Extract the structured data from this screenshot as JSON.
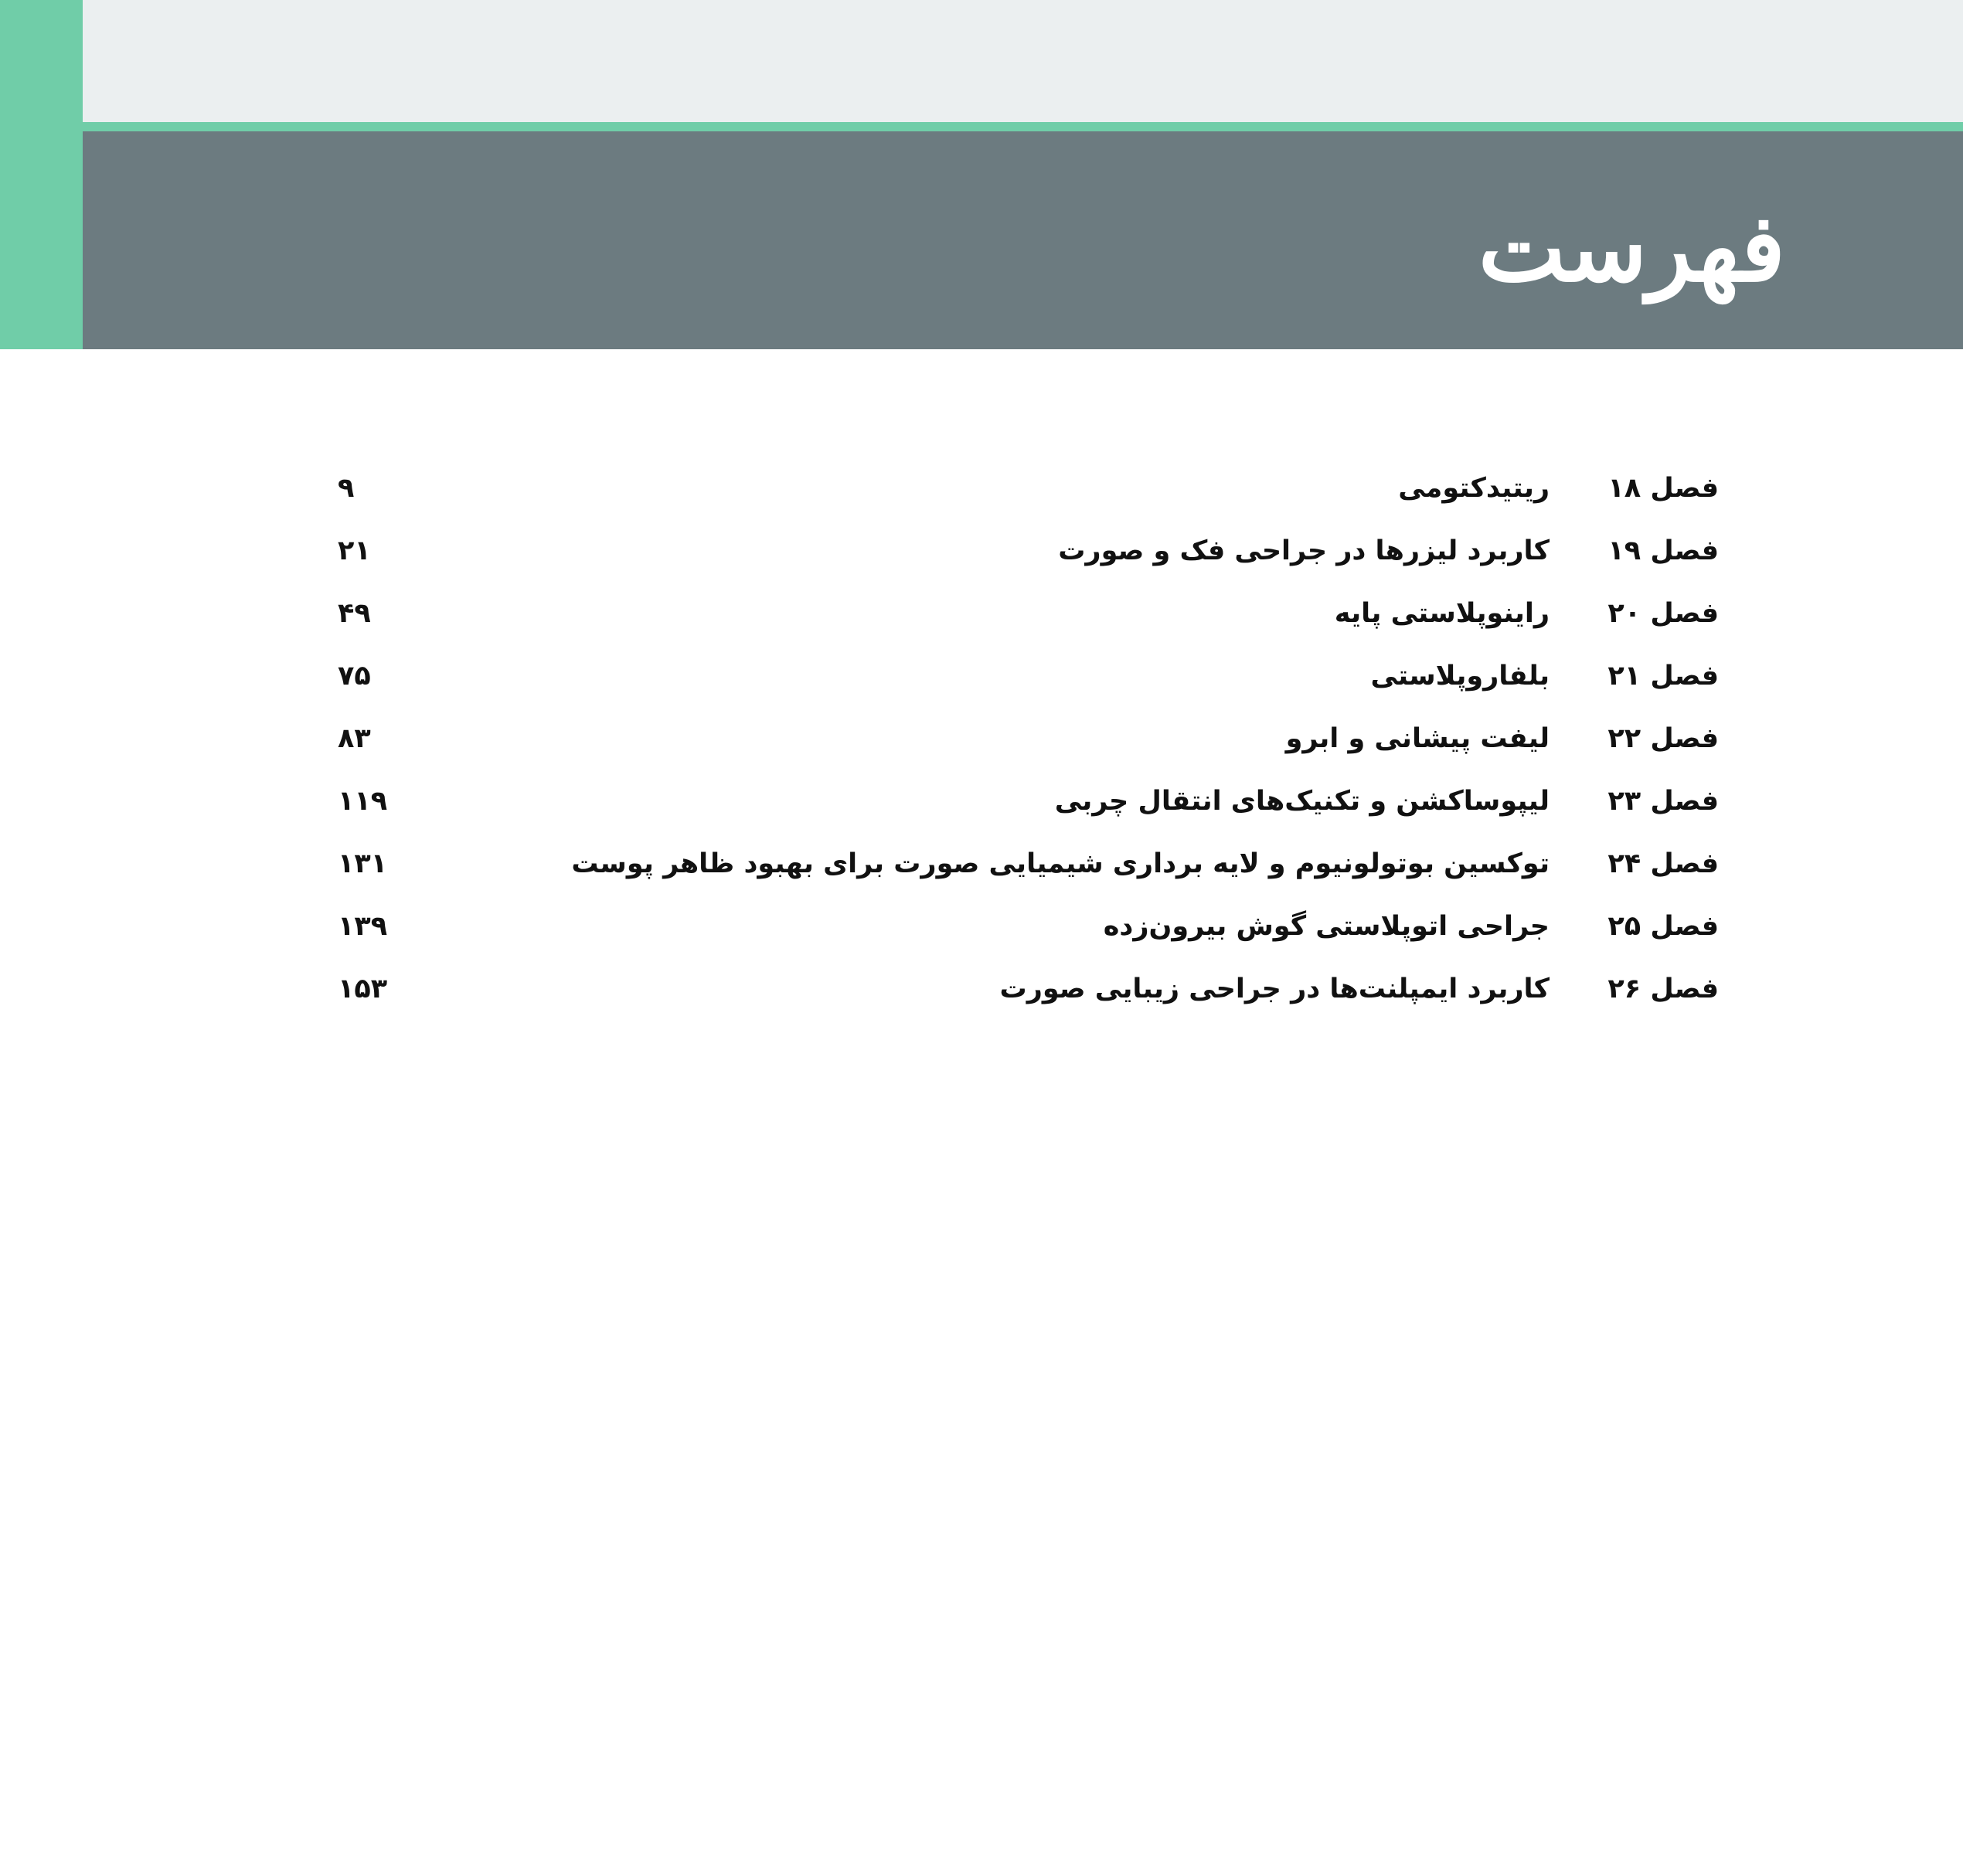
{
  "header": {
    "title": "فهرست"
  },
  "colors": {
    "accent": "#70cda8",
    "band": "#6c7b80",
    "top": "#ebeff0"
  },
  "toc": [
    {
      "chapter": "فصل ۱۸",
      "title": "ریتیدکتومی",
      "page": "۹"
    },
    {
      "chapter": "فصل ۱۹",
      "title": "کاربرد لیزرها در جراحی فک و صورت",
      "page": "۲۱"
    },
    {
      "chapter": "فصل ۲۰",
      "title": "راینوپلاستی پایه",
      "page": "۴۹"
    },
    {
      "chapter": "فصل ۲۱",
      "title": "بلفاروپلاستی",
      "page": "۷۵"
    },
    {
      "chapter": "فصل ۲۲",
      "title": "لیفت پیشانی و ابرو",
      "page": "۸۳"
    },
    {
      "chapter": "فصل ۲۳",
      "title": "لیپوساکشن و تکنیک‌های انتقال چربی",
      "page": "۱۱۹"
    },
    {
      "chapter": "فصل ۲۴",
      "title": "توکسین بوتولونیوم و لایه برداری شیمیایی صورت برای بهبود ظاهر پوست",
      "page": "۱۳۱"
    },
    {
      "chapter": "فصل ۲۵",
      "title": "جراحی اتوپلاستی گوش بیرون‌زده",
      "page": "۱۳۹"
    },
    {
      "chapter": "فصل ۲۶",
      "title": "کاربرد ایمپلنت‌ها در جراحی زیبایی صورت",
      "page": "۱۵۳"
    }
  ]
}
